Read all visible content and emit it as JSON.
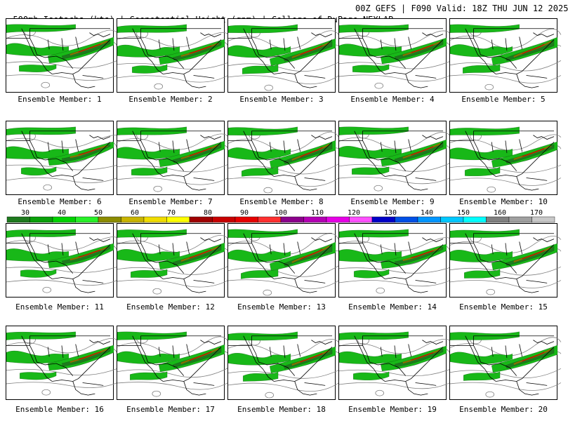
{
  "header": {
    "left": "500mb Isotachs (kts) | Geopotential Height (gpm) | College of DuPage NEXLAB",
    "right": "00Z GEFS | F090 Valid: 18Z THU JUN 12 2025"
  },
  "members": [
    "Ensemble Member: 1",
    "Ensemble Member: 2",
    "Ensemble Member: 3",
    "Ensemble Member: 4",
    "Ensemble Member: 5",
    "Ensemble Member: 6",
    "Ensemble Member: 7",
    "Ensemble Member: 8",
    "Ensemble Member: 9",
    "Ensemble Member: 10",
    "Ensemble Member: 11",
    "Ensemble Member: 12",
    "Ensemble Member: 13",
    "Ensemble Member: 14",
    "Ensemble Member: 15",
    "Ensemble Member: 16",
    "Ensemble Member: 17",
    "Ensemble Member: 18",
    "Ensemble Member: 19",
    "Ensemble Member: 20"
  ],
  "colorbar": {
    "labels": [
      "30",
      "40",
      "50",
      "60",
      "70",
      "80",
      "90",
      "100",
      "110",
      "120",
      "130",
      "140",
      "150",
      "160",
      "170"
    ],
    "colors": [
      "#1e7a1e",
      "#0aa00a",
      "#00d200",
      "#28f028",
      "#8c8c00",
      "#c8b400",
      "#f0dc00",
      "#ffff00",
      "#a00000",
      "#c80000",
      "#e60000",
      "#ff3030",
      "#8c008c",
      "#b400b4",
      "#e600e6",
      "#ff50ff",
      "#0000c8",
      "#0050e6",
      "#0096ff",
      "#00c8ff",
      "#00ffff",
      "#808080",
      "#a0a0a0",
      "#c8c8c8"
    ]
  },
  "colors": {
    "jet_green_dark": "#1e7a1e",
    "jet_green": "#18b818",
    "jet_brown": "#8c6e00",
    "jet_red": "#c80000",
    "height_contour": "#808080"
  }
}
